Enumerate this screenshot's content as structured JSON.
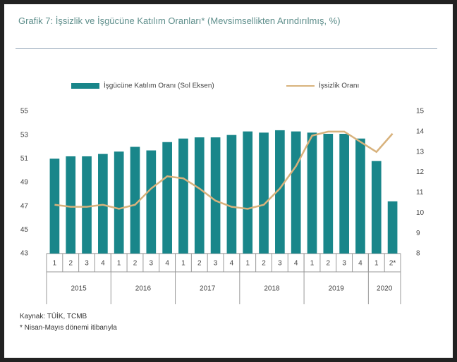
{
  "chart_data": {
    "type": "bar",
    "title": "Grafik 7: İşsizlik ve İşgücüne Katılım Oranları* (Mevsimsellikten Arındırılmış, %)",
    "categories": [
      "1",
      "2",
      "3",
      "4",
      "1",
      "2",
      "3",
      "4",
      "1",
      "2",
      "3",
      "4",
      "1",
      "2",
      "3",
      "4",
      "1",
      "2",
      "3",
      "4",
      "1",
      "2*"
    ],
    "x_group_labels": [
      "2015",
      null,
      null,
      null,
      "2016",
      null,
      null,
      null,
      "2017",
      null,
      null,
      null,
      "2018",
      null,
      null,
      null,
      "2019",
      null,
      null,
      null,
      "2020",
      null
    ],
    "series": [
      {
        "name": "İşgücüne Katılım Oranı (Sol Eksen)",
        "color": "#19868a",
        "type": "bar",
        "values": [
          51.0,
          51.2,
          51.2,
          51.4,
          51.6,
          52.0,
          51.7,
          52.4,
          52.7,
          52.8,
          52.8,
          53.0,
          53.3,
          53.2,
          53.4,
          53.3,
          53.2,
          53.1,
          53.1,
          52.7,
          50.8,
          47.4
        ]
      },
      {
        "name": "İşsizlik Oranı",
        "color": "#d8b27c",
        "type": "line",
        "axis": "y2",
        "values": [
          10.4,
          10.3,
          10.3,
          10.4,
          10.2,
          10.4,
          11.2,
          11.8,
          11.7,
          11.2,
          10.6,
          10.3,
          10.2,
          10.4,
          11.2,
          12.3,
          13.8,
          14.0,
          14.0,
          13.5,
          13.0,
          13.9
        ]
      }
    ],
    "ylim": [
      43,
      55
    ],
    "yticks": [
      43,
      45,
      47,
      49,
      51,
      53,
      55
    ],
    "y2lim": [
      8,
      15
    ],
    "y2ticks": [
      8,
      9,
      10,
      11,
      12,
      13,
      14,
      15
    ],
    "legend": "top"
  },
  "notes": [
    "Kaynak: TÜİK, TCMB",
    "* Nisan-Mayıs dönemi itibarıyla"
  ]
}
